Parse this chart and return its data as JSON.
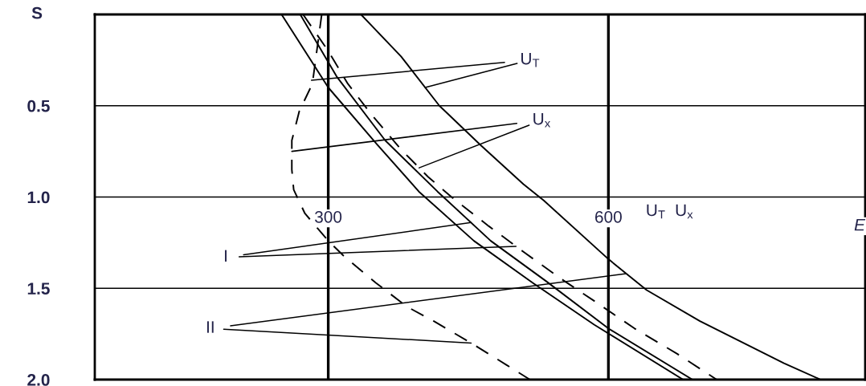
{
  "chart_data": {
    "type": "line",
    "ylabel": "S",
    "xlabel": "E",
    "series": [
      {
        "color": "#000000",
        "line_style": "solid",
        "x": [
          250,
          300,
          352,
          397,
          456,
          519,
          585,
          680
        ],
        "values": [
          0,
          0.4,
          0.71,
          0.97,
          1.24,
          1.47,
          1.7,
          2.0
        ]
      },
      {
        "color": "#000000",
        "line_style": "solid",
        "x": [
          270,
          309,
          361,
          417,
          474,
          533,
          600,
          690
        ],
        "values": [
          0,
          0.34,
          0.69,
          0.97,
          1.24,
          1.46,
          1.72,
          2.0
        ]
      },
      {
        "color": "#000000",
        "line_style": "solid",
        "x": [
          335,
          378,
          419,
          464,
          509,
          531,
          600,
          641,
          698,
          737,
          788,
          827
        ],
        "values": [
          0,
          0.23,
          0.5,
          0.72,
          0.93,
          1.02,
          1.34,
          1.51,
          1.68,
          1.78,
          1.91,
          2.0
        ]
      },
      {
        "color": "#000000",
        "line_style": "dashed",
        "x": [
          273,
          300,
          321,
          345,
          378,
          407,
          432,
          472,
          509,
          547,
          585,
          628,
          674,
          716
        ],
        "values": [
          0,
          0.2,
          0.38,
          0.54,
          0.74,
          0.89,
          1.0,
          1.16,
          1.3,
          1.44,
          1.57,
          1.72,
          1.86,
          2.0
        ]
      },
      {
        "color": "#000000",
        "line_style": "dashed",
        "x": [
          293,
          283,
          269,
          261,
          261,
          263,
          275,
          300,
          316,
          351,
          384,
          413,
          453,
          491,
          516
        ],
        "values": [
          0,
          0.38,
          0.53,
          0.69,
          0.85,
          0.96,
          1.09,
          1.24,
          1.32,
          1.47,
          1.6,
          1.68,
          1.8,
          1.92,
          2.0
        ]
      }
    ],
    "xlim": [
      50,
      875
    ],
    "xticks": [
      300,
      600
    ],
    "ylim": [
      2.0,
      0
    ],
    "yticks": [
      {
        "value": 0,
        "label": null
      },
      0.5,
      {
        "value": 1.0,
        "label": "1.0"
      },
      1.5,
      {
        "value": 2.0,
        "label": "2.0"
      }
    ],
    "grid": true,
    "marker": "none",
    "legend": false,
    "annotations": [
      {
        "text": "U$_{T}$",
        "x": 282,
        "y": 0.36
      },
      {
        "text": "U$_{x}$",
        "x": 261,
        "y": 0.75
      },
      {
        "text": "I",
        "x": 453,
        "y": 1.14
      },
      {
        "text": "II",
        "x": 619,
        "y": 1.42
      },
      "U$_{T}$  U$_{x}$"
    ]
  }
}
